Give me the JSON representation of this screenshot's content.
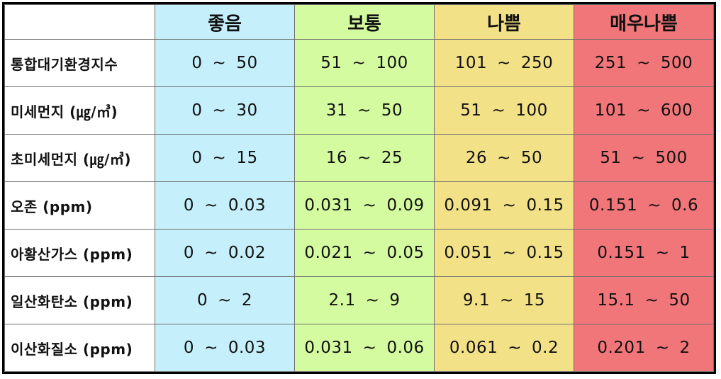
{
  "header": {
    "good": "좋음",
    "normal": "보통",
    "bad": "나쁨",
    "very_bad": "매우나쁨"
  },
  "separator": "~",
  "rows": [
    {
      "label": "통합대기환경지수",
      "good": [
        "0",
        "50"
      ],
      "normal": [
        "51",
        "100"
      ],
      "bad": [
        "101",
        "250"
      ],
      "very_bad": [
        "251",
        "500"
      ]
    },
    {
      "label": "미세먼지 (㎍/㎥)",
      "good": [
        "0",
        "30"
      ],
      "normal": [
        "31",
        "50"
      ],
      "bad": [
        "51",
        "100"
      ],
      "very_bad": [
        "101",
        "600"
      ]
    },
    {
      "label": "초미세먼지 (㎍/㎥)",
      "good": [
        "0",
        "15"
      ],
      "normal": [
        "16",
        "25"
      ],
      "bad": [
        "26",
        "50"
      ],
      "very_bad": [
        "51",
        "500"
      ]
    },
    {
      "label": "오존 (ppm)",
      "good": [
        "0",
        "0.03"
      ],
      "normal": [
        "0.031",
        "0.09"
      ],
      "bad": [
        "0.091",
        "0.15"
      ],
      "very_bad": [
        "0.151",
        "0.6"
      ]
    },
    {
      "label": "아황산가스 (ppm)",
      "good": [
        "0",
        "0.02"
      ],
      "normal": [
        "0.021",
        "0.05"
      ],
      "bad": [
        "0.051",
        "0.15"
      ],
      "very_bad": [
        "0.151",
        "1"
      ]
    },
    {
      "label": "일산화탄소 (ppm)",
      "good": [
        "0",
        "2"
      ],
      "normal": [
        "2.1",
        "9"
      ],
      "bad": [
        "9.1",
        "15"
      ],
      "very_bad": [
        "15.1",
        "50"
      ]
    },
    {
      "label": "이산화질소 (ppm)",
      "good": [
        "0",
        "0.03"
      ],
      "normal": [
        "0.031",
        "0.06"
      ],
      "bad": [
        "0.061",
        "0.2"
      ],
      "very_bad": [
        "0.201",
        "2"
      ]
    }
  ],
  "colors": {
    "good": "#c5effa",
    "normal": "#d4fba0",
    "bad": "#f2e187",
    "very_bad": "#f1767a"
  }
}
